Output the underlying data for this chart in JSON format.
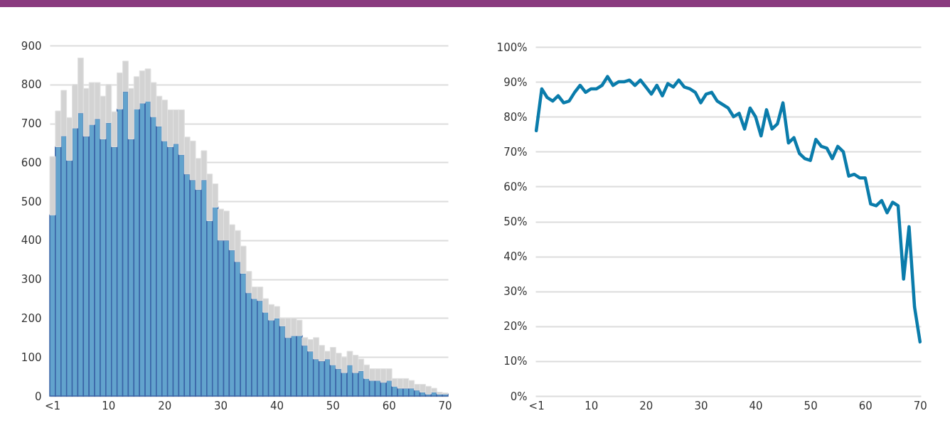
{
  "chart_data": [
    {
      "type": "bar",
      "categories": [
        "<1",
        null,
        null,
        null,
        null,
        null,
        null,
        null,
        null,
        null,
        "10",
        null,
        null,
        null,
        null,
        null,
        null,
        null,
        null,
        null,
        "20",
        null,
        null,
        null,
        null,
        null,
        null,
        null,
        null,
        null,
        "30",
        null,
        null,
        null,
        null,
        null,
        null,
        null,
        null,
        null,
        "40",
        null,
        null,
        null,
        null,
        null,
        null,
        null,
        null,
        null,
        "50",
        null,
        null,
        null,
        null,
        null,
        null,
        null,
        null,
        null,
        "60",
        null,
        null,
        null,
        null,
        null,
        null,
        null,
        null,
        null,
        "70"
      ],
      "series": [
        {
          "color": "#62a3cd",
          "values": [
            465,
            640,
            668,
            605,
            688,
            727,
            667,
            697,
            712,
            660,
            702,
            640,
            737,
            782,
            660,
            737,
            752,
            757,
            717,
            693,
            655,
            640,
            648,
            620,
            570,
            555,
            530,
            555,
            450,
            485,
            400,
            400,
            375,
            345,
            315,
            265,
            250,
            245,
            215,
            195,
            200,
            180,
            150,
            155,
            155,
            130,
            115,
            95,
            90,
            95,
            80,
            70,
            60,
            80,
            60,
            65,
            45,
            40,
            40,
            35,
            40,
            25,
            20,
            20,
            20,
            15,
            10,
            5,
            10,
            5,
            5
          ]
        },
        {
          "color": "#d3d3d3",
          "values": [
            150,
            92,
            117,
            110,
            112,
            141,
            123,
            108,
            93,
            110,
            98,
            90,
            93,
            78,
            130,
            83,
            83,
            83,
            88,
            77,
            105,
            95,
            87,
            115,
            95,
            100,
            80,
            75,
            120,
            60,
            80,
            75,
            65,
            80,
            70,
            55,
            30,
            35,
            35,
            40,
            30,
            20,
            50,
            45,
            40,
            20,
            30,
            55,
            40,
            20,
            45,
            40,
            40,
            35,
            45,
            30,
            35,
            30,
            30,
            35,
            30,
            20,
            25,
            25,
            20,
            15,
            20,
            20,
            10,
            5,
            3
          ]
        }
      ],
      "stacked": true,
      "ylim": [
        0,
        900
      ],
      "yticks": [
        0,
        100,
        200,
        300,
        400,
        500,
        600,
        700,
        800,
        900
      ],
      "grid": "y"
    },
    {
      "type": "line",
      "categories": [
        "<1",
        null,
        null,
        null,
        null,
        null,
        null,
        null,
        null,
        null,
        "10",
        null,
        null,
        null,
        null,
        null,
        null,
        null,
        null,
        null,
        "20",
        null,
        null,
        null,
        null,
        null,
        null,
        null,
        null,
        null,
        "30",
        null,
        null,
        null,
        null,
        null,
        null,
        null,
        null,
        null,
        "40",
        null,
        null,
        null,
        null,
        null,
        null,
        null,
        null,
        null,
        "50",
        null,
        null,
        null,
        null,
        null,
        null,
        null,
        null,
        null,
        "60",
        null,
        null,
        null,
        null,
        null,
        null,
        null,
        null,
        null,
        "70"
      ],
      "series": [
        {
          "color": "#0a7cab",
          "values": [
            76,
            88,
            85.5,
            84.5,
            86,
            84,
            84.5,
            87,
            89,
            87,
            88,
            88,
            89,
            91.5,
            89,
            90,
            90,
            90.5,
            89,
            90.5,
            88.5,
            86.5,
            89,
            86,
            89.5,
            88.5,
            90.5,
            88.5,
            88,
            87,
            84,
            86.5,
            87,
            84.5,
            83.5,
            82.5,
            80,
            81,
            76.5,
            82.5,
            80,
            74.5,
            82,
            76.5,
            78,
            84,
            72.5,
            74,
            69.5,
            68,
            67.5,
            73.5,
            71.5,
            71,
            68,
            71.5,
            70,
            63,
            63.5,
            62.5,
            62.5,
            55,
            54.5,
            56,
            52.5,
            55.5,
            54.5,
            33.5,
            48.5,
            25.5,
            15.5
          ]
        }
      ],
      "ylim": [
        0,
        100
      ],
      "yticks": [
        {
          "value": 0,
          "label": "0%"
        },
        {
          "value": 10,
          "label": "10%"
        },
        {
          "value": 20,
          "label": "20%"
        },
        {
          "value": 30,
          "label": "30%"
        },
        {
          "value": 40,
          "label": "40%"
        },
        {
          "value": 50,
          "label": "50%"
        },
        {
          "value": 60,
          "label": "60%"
        },
        {
          "value": 70,
          "label": "70%"
        },
        {
          "value": 80,
          "label": "80%"
        },
        {
          "value": 90,
          "label": "90%"
        },
        {
          "value": 100,
          "label": "100%"
        }
      ],
      "grid": "y",
      "line_style": "solid"
    }
  ]
}
